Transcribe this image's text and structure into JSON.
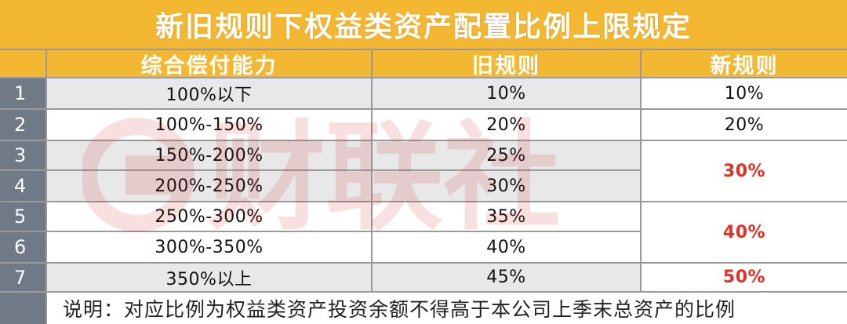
{
  "title": "新旧规则下权益类资产配置比例上限规定",
  "headers": {
    "capacity": "综合偿付能力",
    "old_rule": "旧规则",
    "new_rule": "新规则"
  },
  "rows": [
    {
      "num": "1",
      "capacity": "100%以下",
      "old": "10%"
    },
    {
      "num": "2",
      "capacity": "100%-150%",
      "old": "20%"
    },
    {
      "num": "3",
      "capacity": "150%-200%",
      "old": "25%"
    },
    {
      "num": "4",
      "capacity": "200%-250%",
      "old": "30%"
    },
    {
      "num": "5",
      "capacity": "250%-300%",
      "old": "35%"
    },
    {
      "num": "6",
      "capacity": "300%-350%",
      "old": "40%"
    },
    {
      "num": "7",
      "capacity": "350%以上",
      "old": "45%"
    }
  ],
  "new_rule_values": {
    "r1": "10%",
    "r2": "20%",
    "r3_4": "30%",
    "r5_6": "40%",
    "r7": "50%"
  },
  "note": "说明：对应比例为权益类资产投资余额不得高于本公司上季末总资产的比例",
  "watermark": "财联社",
  "colors": {
    "header_bg": "#f4b732",
    "rownum_bg": "#707a86",
    "highlight_text": "#e03127"
  }
}
